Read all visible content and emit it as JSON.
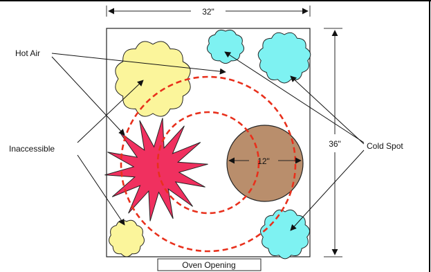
{
  "dimensions": {
    "width_label": "32\"",
    "height_label": "36\"",
    "stone_diameter_label": "12\""
  },
  "labels": {
    "hot_air": "Hot Air",
    "inaccessible": "Inaccessible",
    "cold_spot": "Cold Spot",
    "oven_opening": "Oven Opening"
  },
  "colors": {
    "hot_air_fill": "#fbf59b",
    "cold_spot_fill": "#7ef2f2",
    "flame_fill": "#f0305f",
    "stone_fill": "#b98e6c",
    "heat_ring": "#e8301c",
    "outline": "#222222"
  }
}
